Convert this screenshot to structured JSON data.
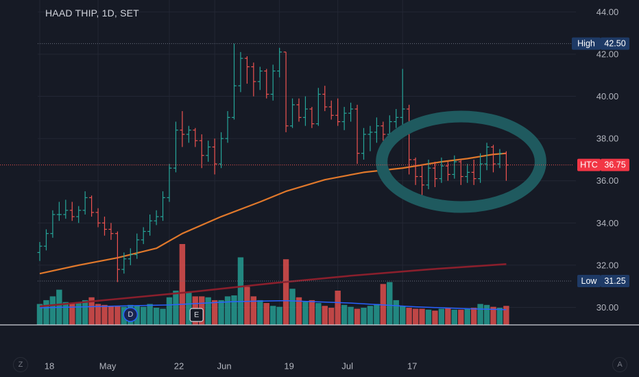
{
  "header": {
    "symbol_title": "HAAD THIP, 1D, SET"
  },
  "price_scale": {
    "ticks": [
      "44.00",
      "42.00",
      "40.00",
      "38.00",
      "36.00",
      "34.00",
      "32.00",
      "30.00"
    ],
    "high_label": "High",
    "high_value": "42.50",
    "htc_label": "HTC",
    "htc_value": "36.75",
    "low_label": "Low",
    "low_value": "31.25"
  },
  "time_axis": {
    "ticks": [
      "18",
      "May",
      "22",
      "Jun",
      "19",
      "Jul",
      "17"
    ]
  },
  "markers": {
    "dividend": "D",
    "earnings": "E"
  },
  "controls": {
    "left_button": "Z",
    "right_button": "A"
  },
  "colors": {
    "background": "#161a25",
    "up": "#26a69a",
    "down": "#ef5350",
    "ma_fast": "#e0782b",
    "ma_slow": "#8a1f2c",
    "volume_ma": "#2962ff",
    "annotation": "#1f5a5f",
    "htc_badge": "#f23645",
    "axis_badge": "#1e3a66"
  },
  "chart_data": {
    "type": "ohlc",
    "title": "HAAD THIP, 1D, SET",
    "timeframe": "1D",
    "ylim": [
      29.3,
      44.5
    ],
    "x_ticks": [
      {
        "label": "18",
        "index": 0
      },
      {
        "label": "May",
        "index": 9
      },
      {
        "label": "22",
        "index": 20
      },
      {
        "label": "Jun",
        "index": 27
      },
      {
        "label": "19",
        "index": 37
      },
      {
        "label": "Jul",
        "index": 46
      },
      {
        "label": "17",
        "index": 56
      }
    ],
    "series": [
      {
        "type": "ohlc",
        "bars": [
          [
            32.6,
            33.1,
            32.2,
            32.9
          ],
          [
            32.9,
            33.7,
            32.7,
            33.5
          ],
          [
            33.5,
            34.6,
            33.3,
            34.4
          ],
          [
            34.4,
            35.0,
            34.1,
            34.4
          ],
          [
            34.4,
            35.1,
            34.2,
            34.6
          ],
          [
            34.6,
            35.0,
            34.1,
            34.3
          ],
          [
            34.3,
            34.8,
            34.0,
            34.6
          ],
          [
            34.6,
            35.5,
            34.4,
            35.2
          ],
          [
            35.2,
            35.3,
            34.3,
            34.5
          ],
          [
            34.5,
            34.7,
            33.8,
            34.0
          ],
          [
            34.0,
            34.3,
            33.4,
            33.7
          ],
          [
            33.7,
            34.0,
            33.2,
            33.5
          ],
          [
            33.5,
            33.6,
            31.2,
            31.8
          ],
          [
            31.8,
            32.6,
            31.6,
            32.3
          ],
          [
            32.3,
            32.8,
            32.0,
            32.5
          ],
          [
            32.5,
            33.5,
            32.3,
            33.2
          ],
          [
            33.2,
            33.8,
            33.0,
            33.6
          ],
          [
            33.6,
            34.4,
            33.4,
            34.1
          ],
          [
            34.1,
            34.6,
            33.9,
            34.3
          ],
          [
            34.3,
            35.5,
            34.1,
            35.2
          ],
          [
            35.2,
            36.8,
            35.0,
            36.6
          ],
          [
            36.6,
            38.8,
            36.4,
            38.4
          ],
          [
            38.4,
            39.3,
            37.6,
            38.2
          ],
          [
            38.2,
            38.6,
            37.8,
            38.4
          ],
          [
            38.4,
            38.5,
            37.6,
            37.9
          ],
          [
            37.9,
            38.2,
            36.6,
            37.2
          ],
          [
            37.2,
            37.9,
            36.9,
            37.6
          ],
          [
            37.6,
            38.0,
            36.3,
            36.8
          ],
          [
            36.8,
            38.3,
            36.6,
            38.0
          ],
          [
            38.0,
            39.3,
            37.8,
            39.0
          ],
          [
            39.0,
            42.5,
            38.9,
            40.5
          ],
          [
            40.5,
            42.1,
            40.2,
            41.8
          ],
          [
            41.8,
            41.9,
            40.6,
            41.4
          ],
          [
            41.4,
            41.6,
            40.0,
            40.7
          ],
          [
            40.7,
            41.4,
            40.3,
            41.2
          ],
          [
            41.2,
            41.3,
            39.9,
            40.1
          ],
          [
            40.1,
            41.5,
            39.8,
            41.2
          ],
          [
            41.2,
            42.3,
            40.9,
            42.1
          ],
          [
            42.1,
            42.1,
            38.3,
            38.6
          ],
          [
            38.6,
            39.9,
            38.5,
            39.6
          ],
          [
            39.6,
            39.9,
            38.8,
            39.0
          ],
          [
            39.0,
            40.0,
            38.6,
            39.4
          ],
          [
            39.4,
            39.5,
            38.5,
            38.7
          ],
          [
            38.7,
            40.4,
            38.6,
            40.1
          ],
          [
            40.1,
            40.5,
            39.3,
            39.5
          ],
          [
            39.5,
            39.8,
            38.9,
            39.1
          ],
          [
            39.1,
            39.9,
            38.6,
            38.8
          ],
          [
            38.8,
            39.5,
            38.4,
            39.2
          ],
          [
            39.2,
            39.7,
            38.8,
            39.4
          ],
          [
            39.4,
            39.6,
            36.8,
            37.3
          ],
          [
            37.3,
            38.5,
            37.0,
            38.2
          ],
          [
            38.2,
            38.6,
            37.4,
            38.3
          ],
          [
            38.3,
            39.0,
            37.8,
            38.6
          ],
          [
            38.6,
            38.8,
            37.9,
            38.2
          ],
          [
            38.2,
            39.1,
            37.7,
            38.8
          ],
          [
            38.8,
            39.4,
            38.5,
            39.0
          ],
          [
            39.0,
            41.3,
            38.6,
            39.4
          ],
          [
            39.4,
            39.6,
            36.3,
            37.0
          ],
          [
            37.0,
            37.1,
            35.8,
            36.2
          ],
          [
            36.2,
            36.7,
            35.3,
            35.8
          ],
          [
            35.8,
            37.0,
            35.6,
            36.6
          ],
          [
            36.6,
            36.9,
            35.7,
            36.1
          ],
          [
            36.1,
            37.1,
            35.9,
            36.7
          ],
          [
            36.7,
            36.9,
            36.0,
            36.3
          ],
          [
            36.3,
            37.2,
            36.1,
            36.9
          ],
          [
            36.9,
            37.0,
            35.8,
            36.2
          ],
          [
            36.2,
            36.8,
            35.9,
            36.4
          ],
          [
            36.4,
            37.0,
            35.8,
            36.1
          ],
          [
            36.1,
            37.3,
            35.9,
            36.8
          ],
          [
            36.8,
            37.8,
            36.5,
            37.6
          ],
          [
            37.6,
            37.7,
            36.4,
            36.8
          ],
          [
            36.8,
            37.5,
            36.6,
            37.3
          ],
          [
            37.3,
            37.4,
            36.0,
            36.75
          ]
        ]
      },
      {
        "name": "",
        "type": "line",
        "role": "moving-average-fast",
        "points": [
          [
            0,
            31.6
          ],
          [
            6,
            32.0
          ],
          [
            12,
            32.35
          ],
          [
            18,
            32.8
          ],
          [
            22,
            33.5
          ],
          [
            28,
            34.3
          ],
          [
            34,
            35.0
          ],
          [
            38,
            35.5
          ],
          [
            44,
            36.05
          ],
          [
            50,
            36.4
          ],
          [
            56,
            36.6
          ],
          [
            62,
            36.9
          ],
          [
            66,
            37.05
          ],
          [
            70,
            37.25
          ],
          [
            72,
            37.3
          ]
        ]
      },
      {
        "name": "",
        "type": "line",
        "role": "moving-average-slow",
        "points": [
          [
            0,
            30.05
          ],
          [
            12,
            30.4
          ],
          [
            24,
            30.75
          ],
          [
            36,
            31.15
          ],
          [
            48,
            31.5
          ],
          [
            60,
            31.8
          ],
          [
            72,
            32.05
          ]
        ]
      }
    ],
    "volume": {
      "values": [
        2.2,
        2.6,
        3.0,
        3.7,
        2.4,
        2.3,
        2.4,
        2.6,
        2.9,
        2.2,
        2.1,
        2.0,
        2.0,
        1.9,
        2.1,
        2.0,
        1.9,
        2.2,
        1.8,
        1.7,
        2.9,
        3.6,
        8.5,
        3.4,
        3.0,
        3.0,
        2.9,
        2.6,
        2.6,
        3.0,
        3.1,
        7.1,
        4.0,
        3.0,
        2.6,
        2.3,
        2.0,
        1.9,
        6.9,
        3.8,
        2.9,
        2.5,
        2.6,
        2.3,
        2.0,
        1.8,
        3.6,
        2.1,
        1.9,
        1.7,
        1.8,
        2.0,
        2.2,
        4.3,
        4.5,
        2.6,
        2.0,
        1.8,
        1.7,
        1.7,
        1.6,
        1.5,
        1.7,
        1.8,
        1.6,
        1.6,
        1.7,
        1.8,
        2.2,
        2.1,
        1.9,
        1.8,
        2.0
      ],
      "moving_average": [
        [
          0,
          1.8
        ],
        [
          10,
          1.95
        ],
        [
          20,
          2.1
        ],
        [
          30,
          2.45
        ],
        [
          38,
          2.55
        ],
        [
          48,
          2.3
        ],
        [
          58,
          1.9
        ],
        [
          66,
          1.7
        ],
        [
          72,
          1.6
        ]
      ]
    },
    "annotation": {
      "shape": "ellipse",
      "around_bars": [
        57,
        72
      ]
    },
    "grid": true,
    "legend": "none"
  }
}
